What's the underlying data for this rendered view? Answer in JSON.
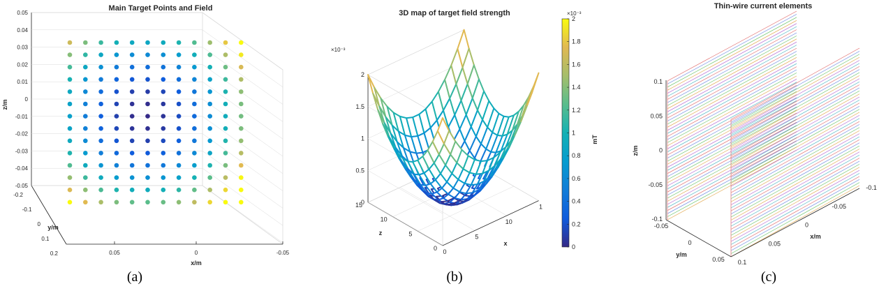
{
  "captions": [
    "(a)",
    "(b)",
    "(c)"
  ],
  "chart_data": [
    {
      "type": "scatter",
      "title": "Main Target Points and Field",
      "xlabel": "x/m",
      "ylabel": "y/m",
      "zlabel": "z/m",
      "x_ticks": [
        "0.05",
        "0",
        "-0.05"
      ],
      "y_ticks": [
        "-0.2",
        "-0.1",
        "0",
        "0.1",
        "0.2"
      ],
      "z_ticks": [
        "0.05",
        "0.04",
        "0.03",
        "0.02",
        "0.01",
        "0",
        "-0.01",
        "-0.02",
        "-0.03",
        "-0.04",
        "-0.05"
      ],
      "grid": true,
      "rows": 14,
      "cols": 12,
      "colormap": "parula",
      "note_values": "points on a 12 x 14 grid in the x-z plane; color = field strength, minimum near grid centre, maximum at the corners"
    },
    {
      "type": "surface",
      "title": "3D map of target field strength",
      "xlabel": "x",
      "ylabel": "z",
      "zlabel": "",
      "z_exponent": "×10⁻³",
      "x_ticks": [
        "0",
        "5",
        "10",
        "1"
      ],
      "y_ticks": [
        "0",
        "5",
        "10",
        "15"
      ],
      "z_ticks": [
        "0",
        "0.5",
        "1",
        "1.5",
        "2"
      ],
      "zlim": [
        0,
        0.002
      ],
      "grid_size": 15,
      "colorbar": {
        "label": "mT",
        "exponent": "×10⁻³",
        "ticks": [
          "0",
          "0.2",
          "0.4",
          "0.6",
          "0.8",
          "1",
          "1.2",
          "1.4",
          "1.6",
          "1.8",
          "2"
        ]
      },
      "grid": true
    },
    {
      "type": "line",
      "title": "Thin-wire current elements",
      "xlabel": "x/m",
      "ylabel": "y/m",
      "zlabel": "z/m",
      "x_ticks": [
        "0.1",
        "0.05",
        "0",
        "-0.05",
        "-0.1"
      ],
      "y_ticks": [
        "-0.05",
        "0",
        "0.05"
      ],
      "z_ticks": [
        "0.1",
        "0.05",
        "0",
        "-0.05",
        "-0.1"
      ],
      "planes": 2,
      "wires_per_plane": 46,
      "grid": false
    }
  ]
}
